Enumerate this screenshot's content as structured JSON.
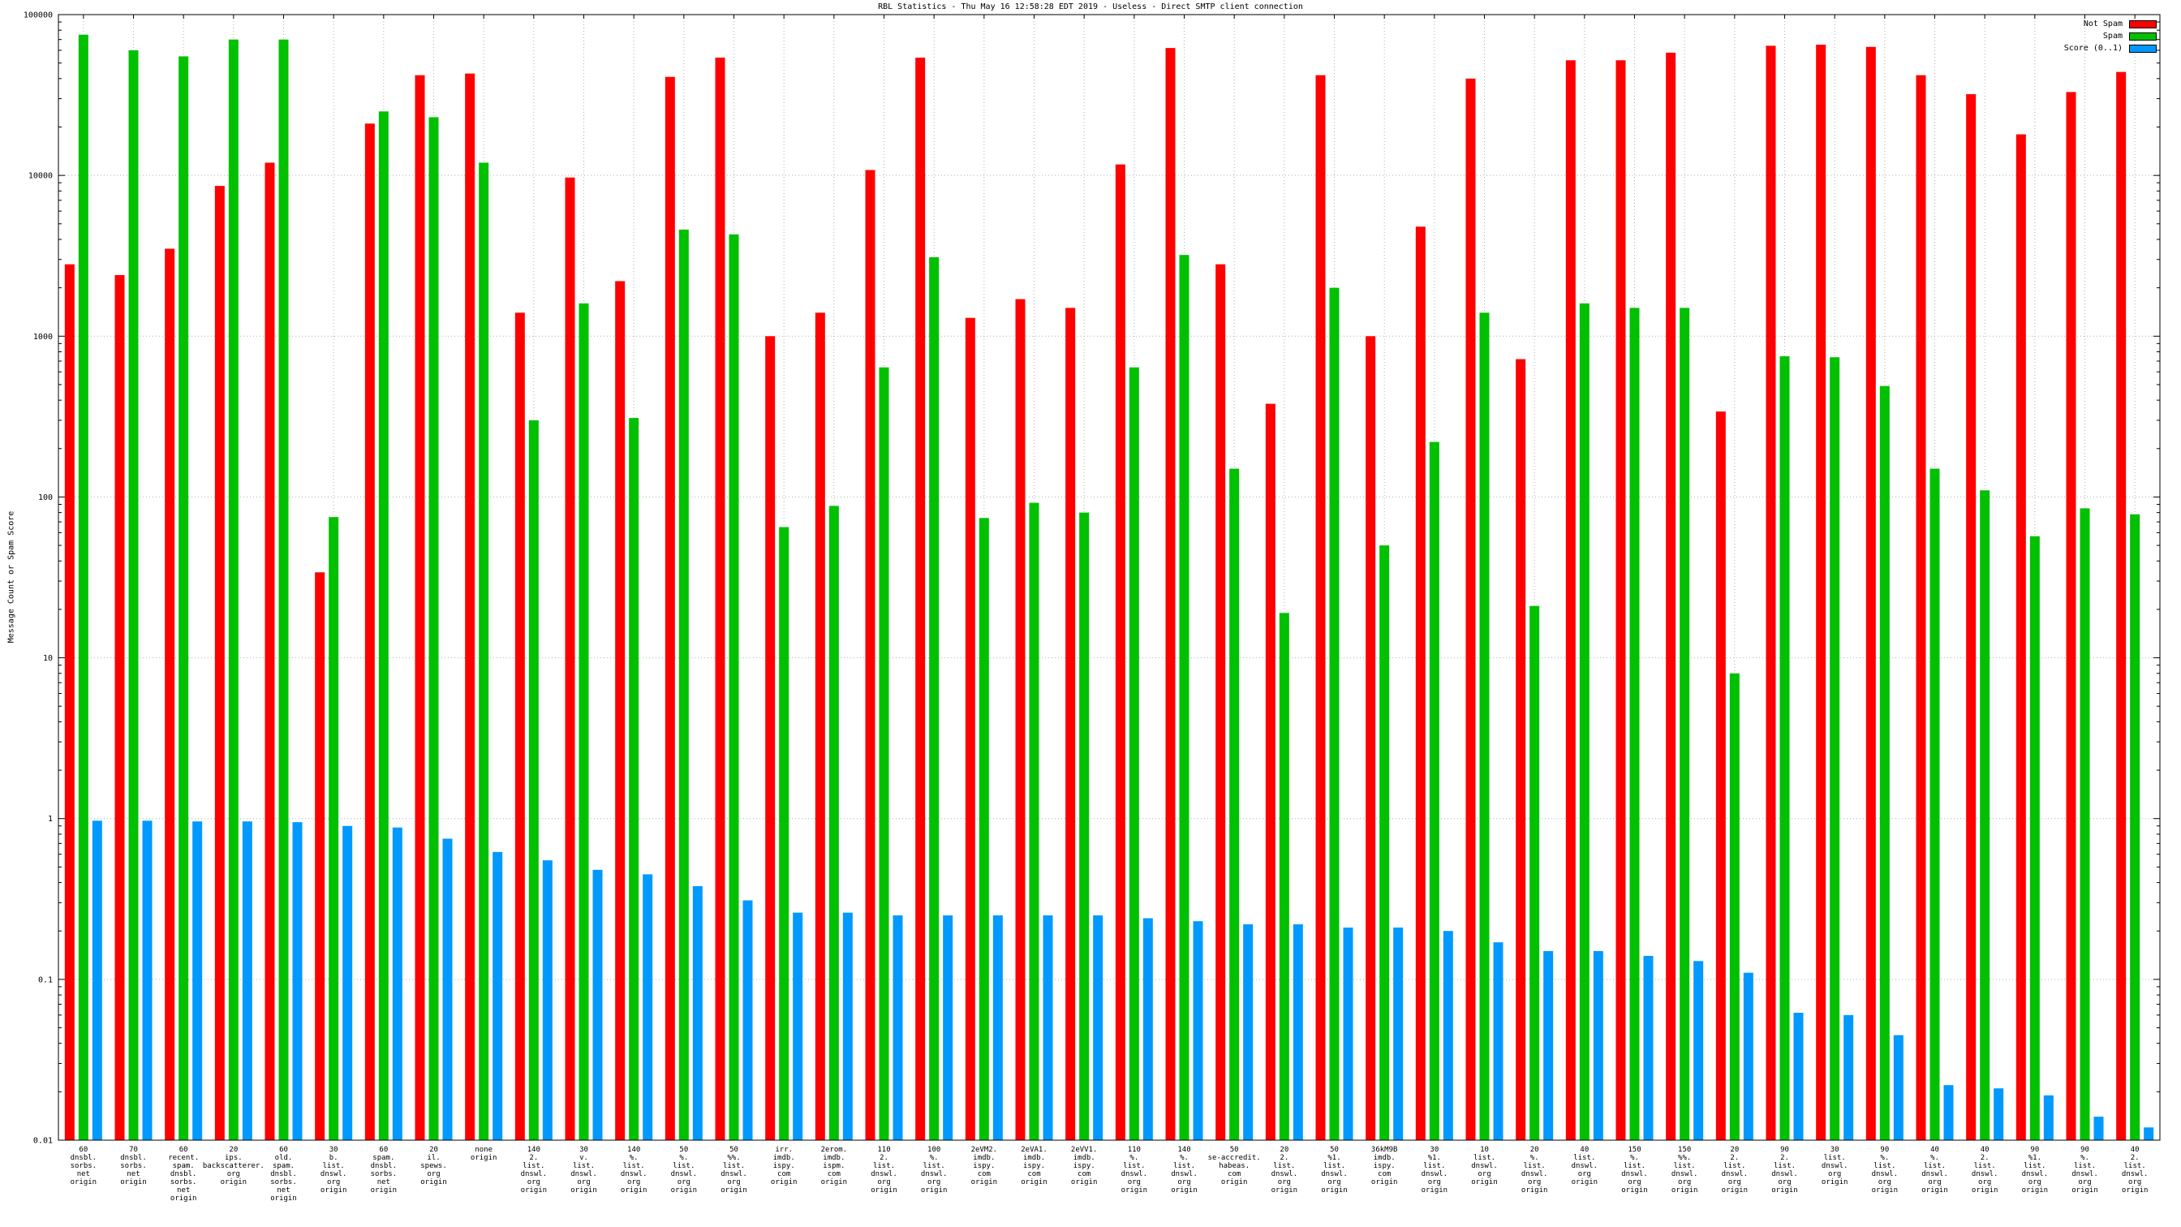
{
  "chart_data": {
    "type": "bar",
    "title": "RBL Statistics - Thu May 16 12:58:28 EDT 2019 - Useless - Direct SMTP client connection",
    "ylabel": "Message Count or Spam Score",
    "xlabel": "",
    "yscale": "log",
    "ylim": [
      0.01,
      100000
    ],
    "yticks": [
      0.01,
      0.1,
      1,
      10,
      100,
      1000,
      10000,
      100000
    ],
    "ytick_labels": [
      "0.01",
      "0.1",
      "1",
      "10",
      "100",
      "1000",
      "10000",
      "100000"
    ],
    "grid": true,
    "legend_position": "top-right",
    "grid_color": "#b0b0b0",
    "categories": [
      [
        "60",
        "dnsbl.",
        "sorbs.",
        "net",
        "origin"
      ],
      [
        "70",
        "dnsbl.",
        "sorbs.",
        "net",
        "origin"
      ],
      [
        "60",
        "recent.",
        "spam.",
        "dnsbl.",
        "sorbs.",
        "net",
        "origin"
      ],
      [
        "20",
        "ips.",
        "backscatterer.",
        "org",
        "origin"
      ],
      [
        "60",
        "old.",
        "spam.",
        "dnsbl.",
        "sorbs.",
        "net",
        "origin"
      ],
      [
        "30",
        "b.",
        "list.",
        "dnswl.",
        "org",
        "origin"
      ],
      [
        "60",
        "spam.",
        "dnsbl.",
        "sorbs.",
        "net",
        "origin"
      ],
      [
        "20",
        "il.",
        "spews.",
        "org",
        "origin"
      ],
      [
        "none",
        "origin"
      ],
      [
        "140",
        "2.",
        "list.",
        "dnswl.",
        "org",
        "origin"
      ],
      [
        "30",
        "v.",
        "list.",
        "dnswl.",
        "org",
        "origin"
      ],
      [
        "140",
        "%.",
        "list.",
        "dnswl.",
        "org",
        "origin"
      ],
      [
        "50",
        "%.",
        "list.",
        "dnswl.",
        "org",
        "origin"
      ],
      [
        "50",
        "%%.",
        "list.",
        "dnswl.",
        "org",
        "origin"
      ],
      [
        "irr.",
        "imdb.",
        "ispy.",
        "com",
        "origin"
      ],
      [
        "2erom.",
        "imdb.",
        "ispm.",
        "com",
        "origin"
      ],
      [
        "110",
        "2.",
        "list.",
        "dnswl.",
        "org",
        "origin"
      ],
      [
        "100",
        "%.",
        "list.",
        "dnswl.",
        "org",
        "origin"
      ],
      [
        "2eVM2.",
        "imdb.",
        "ispy.",
        "com",
        "origin"
      ],
      [
        "2eVA1.",
        "imdb.",
        "ispy.",
        "com",
        "origin"
      ],
      [
        "2eVV1.",
        "imdb.",
        "ispy.",
        "com",
        "origin"
      ],
      [
        "110",
        "%.",
        "list.",
        "dnswl.",
        "org",
        "origin"
      ],
      [
        "140",
        "%.",
        "list.",
        "dnswl.",
        "org",
        "origin"
      ],
      [
        "50",
        "se-accredit.",
        "habeas.",
        "com",
        "origin"
      ],
      [
        "20",
        "2.",
        "list.",
        "dnswl.",
        "org",
        "origin"
      ],
      [
        "50",
        "%1.",
        "list.",
        "dnswl.",
        "org",
        "origin"
      ],
      [
        "36kM9B",
        "imdb.",
        "ispy.",
        "com",
        "origin"
      ],
      [
        "30",
        "%1.",
        "list.",
        "dnswl.",
        "org",
        "origin"
      ],
      [
        "10",
        "list.",
        "dnswl.",
        "org",
        "origin"
      ],
      [
        "20",
        "%.",
        "list.",
        "dnswl.",
        "org",
        "origin"
      ],
      [
        "40",
        "list.",
        "dnswl.",
        "org",
        "origin"
      ],
      [
        "150",
        "%.",
        "list.",
        "dnswl.",
        "org",
        "origin"
      ],
      [
        "150",
        "%%.",
        "list.",
        "dnswl.",
        "org",
        "origin"
      ],
      [
        "20",
        "2.",
        "list.",
        "dnswl.",
        "org",
        "origin"
      ],
      [
        "90",
        "2.",
        "list.",
        "dnswl.",
        "org",
        "origin"
      ],
      [
        "30",
        "list.",
        "dnswl.",
        "org",
        "origin"
      ],
      [
        "90",
        "%.",
        "list.",
        "dnswl.",
        "org",
        "origin"
      ],
      [
        "40",
        "%.",
        "list.",
        "dnswl.",
        "org",
        "origin"
      ],
      [
        "40",
        "2.",
        "list.",
        "dnswl.",
        "org",
        "origin"
      ],
      [
        "90",
        "%1.",
        "list.",
        "dnswl.",
        "org",
        "origin"
      ],
      [
        "90",
        "%.",
        "list.",
        "dnswl.",
        "org",
        "origin"
      ],
      [
        "40",
        "2.",
        "list.",
        "dnswl.",
        "org",
        "origin"
      ]
    ],
    "series": [
      {
        "name": "Not Spam",
        "color": "#ff0000",
        "values": [
          2800,
          2400,
          3500,
          8600,
          12000,
          34,
          21000,
          42000,
          43000,
          1400,
          9700,
          2200,
          41000,
          54000,
          1000,
          1400,
          10800,
          54000,
          1300,
          1700,
          1500,
          11700,
          62000,
          2800,
          380,
          42000,
          1000,
          4800,
          40000,
          720,
          52000,
          52000,
          58000,
          340,
          64000,
          65000,
          63000,
          42000,
          32000,
          18000,
          33000,
          44000
        ]
      },
      {
        "name": "Spam",
        "color": "#00c000",
        "values": [
          75000,
          60000,
          55000,
          70000,
          70000,
          75,
          25000,
          23000,
          12000,
          300,
          1600,
          310,
          4600,
          4300,
          65,
          88,
          640,
          3100,
          74,
          92,
          80,
          640,
          3200,
          150,
          19,
          2000,
          50,
          220,
          1400,
          21,
          1600,
          1500,
          1500,
          8,
          750,
          740,
          490,
          150,
          110,
          57,
          85,
          78
        ]
      },
      {
        "name": "Score (0..1)",
        "color": "#0099ff",
        "values": [
          0.97,
          0.97,
          0.96,
          0.96,
          0.95,
          0.9,
          0.88,
          0.75,
          0.62,
          0.55,
          0.48,
          0.45,
          0.38,
          0.31,
          0.26,
          0.26,
          0.25,
          0.25,
          0.25,
          0.25,
          0.25,
          0.24,
          0.23,
          0.22,
          0.22,
          0.21,
          0.21,
          0.2,
          0.17,
          0.15,
          0.15,
          0.14,
          0.13,
          0.11,
          0.062,
          0.06,
          0.045,
          0.022,
          0.021,
          0.019,
          0.014,
          0.012
        ]
      }
    ]
  }
}
